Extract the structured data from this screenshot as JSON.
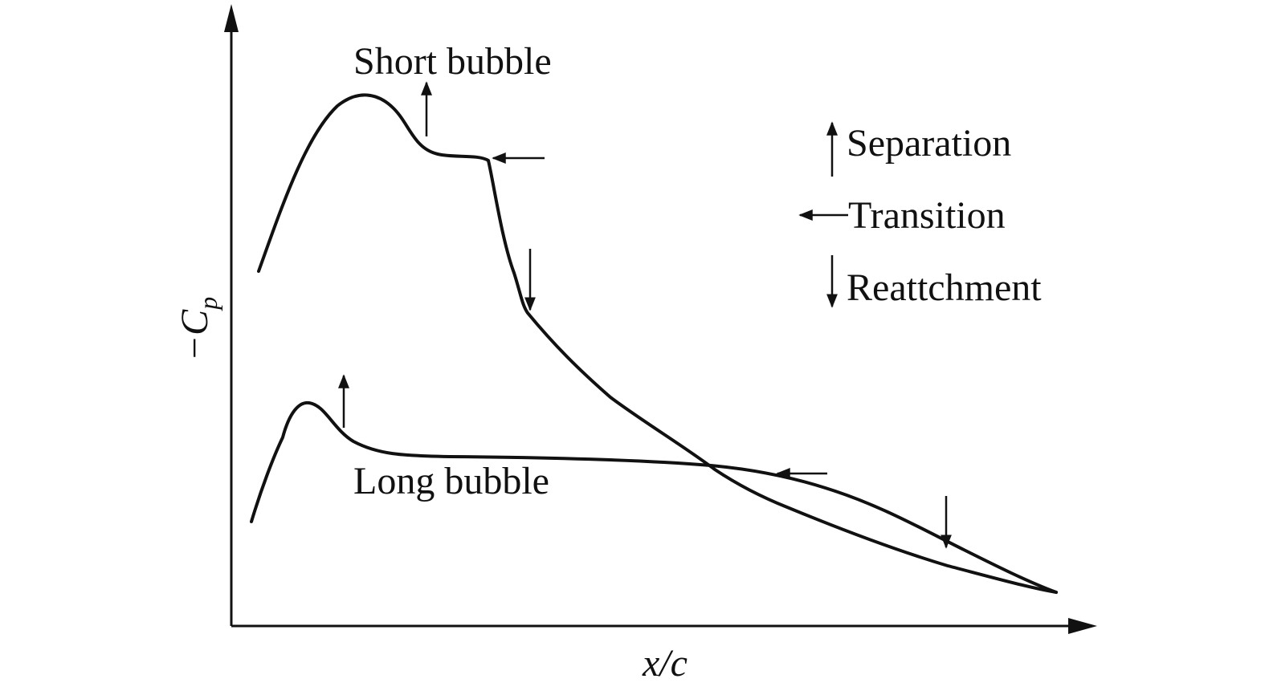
{
  "diagram": {
    "curve_labels": {
      "short": "Short bubble",
      "long": "Long bubble"
    },
    "legend": {
      "separation": "Separation",
      "transition": "Transition",
      "reattachment": "Reattchment"
    },
    "axes": {
      "x_label": "x/c",
      "y_label": {
        "main": "−C",
        "sub": "p"
      }
    }
  }
}
